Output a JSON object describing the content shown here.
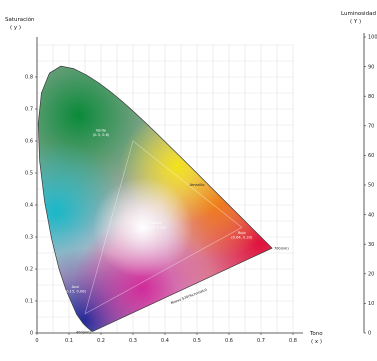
{
  "chart_data": {
    "type": "scatter",
    "left_axis": {
      "title_line1": "Saturación",
      "title_line2": "( y )",
      "ticks": [
        "0",
        "0.1",
        "0.2",
        "0.3",
        "0.4",
        "0.5",
        "0.6",
        "0.7",
        "0.8"
      ],
      "range": [
        0,
        0.9
      ]
    },
    "bottom_axis": {
      "title_line1": "Tono",
      "title_line2": "( x )",
      "ticks": [
        "0",
        "0.1",
        "0.2",
        "0.3",
        "0.4",
        "0.5",
        "0.6",
        "0.7",
        "0.8"
      ],
      "range": [
        0,
        0.8
      ]
    },
    "right_axis": {
      "title_line1": "Luminosidad",
      "title_line2": "( Y )",
      "ticks": [
        "0",
        "10",
        "20",
        "30",
        "40",
        "50",
        "60",
        "70",
        "80",
        "90",
        "100"
      ],
      "range": [
        0,
        100
      ]
    },
    "grid": true,
    "spectral_locus": [
      [
        0.1741,
        0.005
      ],
      [
        0.1738,
        0.0049
      ],
      [
        0.1733,
        0.0048
      ],
      [
        0.1726,
        0.0048
      ],
      [
        0.1714,
        0.0051
      ],
      [
        0.1689,
        0.0069
      ],
      [
        0.1644,
        0.0109
      ],
      [
        0.1566,
        0.0177
      ],
      [
        0.144,
        0.0297
      ],
      [
        0.1241,
        0.0578
      ],
      [
        0.0913,
        0.1327
      ],
      [
        0.0687,
        0.2007
      ],
      [
        0.0454,
        0.295
      ],
      [
        0.0235,
        0.4127
      ],
      [
        0.0082,
        0.5384
      ],
      [
        0.0039,
        0.6548
      ],
      [
        0.0139,
        0.7502
      ],
      [
        0.0389,
        0.812
      ],
      [
        0.0743,
        0.8338
      ],
      [
        0.1142,
        0.8262
      ],
      [
        0.1547,
        0.8059
      ],
      [
        0.1929,
        0.7816
      ],
      [
        0.2296,
        0.7543
      ],
      [
        0.2658,
        0.7243
      ],
      [
        0.3016,
        0.6923
      ],
      [
        0.3373,
        0.6589
      ],
      [
        0.3731,
        0.6245
      ],
      [
        0.4087,
        0.5896
      ],
      [
        0.4441,
        0.5547
      ],
      [
        0.4788,
        0.5202
      ],
      [
        0.5125,
        0.4866
      ],
      [
        0.5448,
        0.4544
      ],
      [
        0.5752,
        0.4242
      ],
      [
        0.6029,
        0.3965
      ],
      [
        0.627,
        0.3725
      ],
      [
        0.6482,
        0.3514
      ],
      [
        0.6658,
        0.334
      ],
      [
        0.6801,
        0.3197
      ],
      [
        0.6915,
        0.3083
      ],
      [
        0.7006,
        0.2993
      ],
      [
        0.7079,
        0.292
      ],
      [
        0.714,
        0.2859
      ],
      [
        0.719,
        0.2809
      ],
      [
        0.723,
        0.277
      ],
      [
        0.726,
        0.274
      ],
      [
        0.7347,
        0.2653
      ]
    ],
    "locus_labels": [
      {
        "text": "700(nm)",
        "x": 0.7347,
        "y": 0.2653
      },
      {
        "text": "400(nm)",
        "x": 0.1741,
        "y": 0.005
      },
      {
        "text": "Nuevo 520(%cromato)",
        "x": 0.42,
        "y": 0.09
      }
    ],
    "region_labels": [
      {
        "line1": "Verde",
        "line2": "(0.3, 0.6)",
        "x": 0.2,
        "y": 0.63
      },
      {
        "line1": "Amarillo",
        "line2": "",
        "x": 0.5,
        "y": 0.46
      },
      {
        "line1": "Blanco",
        "line2": "(0.33, 0.33)",
        "x": 0.37,
        "y": 0.34
      },
      {
        "line1": "Rojo",
        "line2": "(0.64, 0.33)",
        "x": 0.64,
        "y": 0.31
      },
      {
        "line1": "Azul",
        "line2": "(0.15, 0.06)",
        "x": 0.12,
        "y": 0.14
      }
    ]
  }
}
